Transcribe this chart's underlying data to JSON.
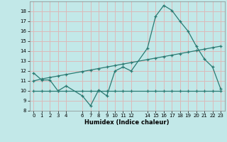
{
  "bg_color": "#c2e8e8",
  "grid_color": "#dbbaba",
  "line_color": "#2a7a72",
  "xlabel": "Humidex (Indice chaleur)",
  "ylim": [
    8,
    19
  ],
  "xlim": [
    -0.5,
    23.5
  ],
  "yticks": [
    8,
    9,
    10,
    11,
    12,
    13,
    14,
    15,
    16,
    17,
    18
  ],
  "xtick_labels": [
    "0",
    "1",
    "2",
    "3",
    "4",
    "6",
    "7",
    "8",
    "9",
    "101112",
    "141516171819202122 23"
  ],
  "xtick_vals": [
    0,
    1,
    2,
    3,
    4,
    6,
    7,
    8,
    9,
    10,
    11,
    12,
    14,
    15,
    16,
    17,
    18,
    19,
    20,
    21,
    22,
    23
  ],
  "xtick_strs": [
    "0",
    "1",
    "2",
    "3",
    "4",
    "6",
    "7",
    "8",
    "9",
    "10",
    "11",
    "12",
    "14",
    "15",
    "16",
    "17",
    "18",
    "19",
    "20",
    "21",
    "22",
    "23"
  ],
  "curve1_x": [
    0,
    1,
    2,
    3,
    4,
    6,
    7,
    8,
    9,
    10,
    11,
    12,
    14,
    15,
    16,
    17,
    18,
    19,
    20,
    21,
    22,
    23
  ],
  "curve1_y": [
    11.8,
    11.1,
    11.1,
    10.0,
    10.5,
    9.5,
    8.5,
    10.1,
    9.5,
    12.0,
    12.4,
    12.0,
    14.3,
    17.5,
    18.6,
    18.1,
    17.0,
    16.0,
    14.5,
    13.2,
    12.4,
    10.2
  ],
  "curve2_x": [
    0,
    1,
    2,
    3,
    4,
    6,
    7,
    8,
    9,
    10,
    11,
    12,
    14,
    15,
    16,
    17,
    18,
    19,
    20,
    21,
    22,
    23
  ],
  "curve2_y": [
    11.0,
    11.2,
    11.35,
    11.5,
    11.65,
    11.95,
    12.1,
    12.25,
    12.4,
    12.55,
    12.7,
    12.85,
    13.15,
    13.3,
    13.45,
    13.6,
    13.75,
    13.9,
    14.05,
    14.2,
    14.35,
    14.5
  ],
  "curve3_x": [
    0,
    1,
    2,
    3,
    4,
    6,
    7,
    8,
    9,
    10,
    11,
    12,
    14,
    15,
    16,
    17,
    18,
    19,
    20,
    21,
    22,
    23
  ],
  "curve3_y": [
    10.0,
    10.0,
    10.0,
    10.0,
    10.0,
    10.0,
    10.0,
    10.0,
    10.0,
    10.0,
    10.0,
    10.0,
    10.0,
    10.0,
    10.0,
    10.0,
    10.0,
    10.0,
    10.0,
    10.0,
    10.0,
    10.0
  ]
}
